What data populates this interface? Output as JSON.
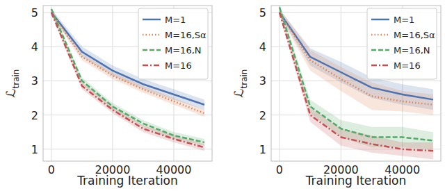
{
  "chart_data": [
    {
      "type": "line",
      "xlabel": "Training Iteration",
      "ylabel": "ℒtrain",
      "x": [
        0,
        10000,
        20000,
        30000,
        40000,
        50000
      ],
      "xlim": [
        -2700,
        52500
      ],
      "xticks": [
        0,
        20000,
        40000
      ],
      "ylim": [
        0.65,
        5.2
      ],
      "yticks": [
        1,
        2,
        3,
        4,
        5
      ],
      "grid": true,
      "legend": "upper right",
      "series": [
        {
          "name": "M=1",
          "color": "#4c72b0",
          "line_style": "solid",
          "values": [
            5.0,
            3.85,
            3.3,
            2.9,
            2.6,
            2.3
          ],
          "error": [
            0.1,
            0.15,
            0.15,
            0.15,
            0.15,
            0.15
          ]
        },
        {
          "name": "M=16,Sα",
          "color": "#dd8452",
          "line_style": "dotted",
          "values": [
            5.0,
            3.7,
            3.15,
            2.75,
            2.4,
            2.05
          ],
          "error": [
            0.1,
            0.1,
            0.1,
            0.1,
            0.1,
            0.1
          ]
        },
        {
          "name": "M=16,N",
          "color": "#55a868",
          "line_style": "dashed",
          "values": [
            5.1,
            3.0,
            2.25,
            1.75,
            1.4,
            1.2
          ],
          "error": [
            0.05,
            0.1,
            0.1,
            0.1,
            0.1,
            0.1
          ]
        },
        {
          "name": "M=16",
          "color": "#c44e52",
          "line_style": "dashdot",
          "values": [
            5.0,
            2.85,
            2.15,
            1.6,
            1.3,
            1.05
          ],
          "error": [
            0.05,
            0.1,
            0.1,
            0.1,
            0.1,
            0.1
          ]
        }
      ]
    },
    {
      "type": "line",
      "xlabel": "Training Iteration",
      "ylabel": "ℒtrain",
      "x": [
        0,
        10000,
        20000,
        30000,
        40000,
        50000
      ],
      "xlim": [
        -2700,
        52500
      ],
      "xticks": [
        0,
        20000,
        40000
      ],
      "ylim": [
        0.65,
        5.2
      ],
      "yticks": [
        1,
        2,
        3,
        4,
        5
      ],
      "grid": true,
      "legend": "upper right",
      "series": [
        {
          "name": "M=1",
          "color": "#4c72b0",
          "line_style": "solid",
          "values": [
            5.0,
            3.7,
            3.25,
            2.8,
            2.6,
            2.45
          ],
          "error": [
            0.1,
            0.25,
            0.3,
            0.3,
            0.3,
            0.3
          ]
        },
        {
          "name": "M=16,Sα",
          "color": "#dd8452",
          "line_style": "dotted",
          "values": [
            5.0,
            3.6,
            3.05,
            2.55,
            2.4,
            2.3
          ],
          "error": [
            0.1,
            0.3,
            0.35,
            0.4,
            0.3,
            0.3
          ]
        },
        {
          "name": "M=16,N",
          "color": "#55a868",
          "line_style": "dashed",
          "values": [
            5.15,
            2.25,
            1.6,
            1.35,
            1.35,
            1.25
          ],
          "error": [
            0.1,
            0.2,
            0.25,
            0.3,
            0.3,
            0.25
          ]
        },
        {
          "name": "M=16",
          "color": "#c44e52",
          "line_style": "dashdot",
          "values": [
            5.0,
            2.0,
            1.35,
            1.15,
            1.0,
            0.95
          ],
          "error": [
            0.05,
            0.2,
            0.25,
            0.25,
            0.2,
            0.25
          ]
        }
      ]
    }
  ]
}
